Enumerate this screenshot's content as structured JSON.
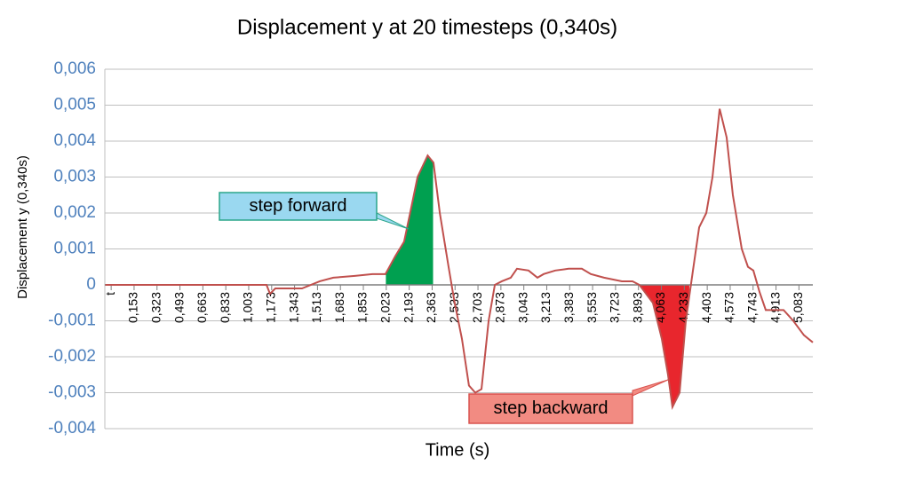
{
  "chart_data": {
    "type": "line",
    "title": "Displacement y at 20 timesteps (0,340s)",
    "x_label": "Time (s)",
    "y_label": "Displacement y  (0,340s)",
    "x": [
      -0.06,
      1.135,
      1.161,
      1.2,
      1.398,
      1.53,
      1.63,
      1.79,
      1.92,
      2.017,
      2.09,
      2.155,
      2.2,
      2.255,
      2.33,
      2.373,
      2.42,
      2.485,
      2.53,
      2.584,
      2.636,
      2.683,
      2.729,
      2.782,
      2.828,
      2.88,
      2.946,
      2.992,
      3.078,
      3.144,
      3.19,
      3.276,
      3.375,
      3.473,
      3.54,
      3.638,
      3.77,
      3.849,
      3.9,
      4.0,
      4.066,
      4.112,
      4.145,
      4.198,
      4.244,
      4.297,
      4.343,
      4.396,
      4.442,
      4.495,
      4.547,
      4.593,
      4.659,
      4.705,
      4.745,
      4.791,
      4.837,
      4.922,
      4.969,
      5.041,
      5.12,
      5.186
    ],
    "series": [
      {
        "name": "Displacement y",
        "color": "#c0504d",
        "values": [
          0,
          0,
          -0.00025,
          -0.0001,
          -0.0001,
          0.0001,
          0.0002,
          0.00025,
          0.0003,
          0.0003,
          0.0008,
          0.0012,
          0.002,
          0.003,
          0.0036,
          0.0034,
          0.002,
          0.0005,
          -0.0005,
          -0.0015,
          -0.0028,
          -0.003,
          -0.0029,
          -0.001,
          0,
          0.0001,
          0.0002,
          0.00045,
          0.0004,
          0.0002,
          0.0003,
          0.0004,
          0.00045,
          0.00045,
          0.0003,
          0.0002,
          0.0001,
          0.0001,
          0,
          -0.0005,
          -0.0015,
          -0.0025,
          -0.0034,
          -0.003,
          -0.001,
          0.0004,
          0.0016,
          0.002,
          0.003,
          0.0049,
          0.0041,
          0.0025,
          0.001,
          0.0005,
          0.0004,
          -0.0002,
          -0.0007,
          -0.0007,
          -0.0007,
          -0.001,
          -0.0014,
          -0.0016
        ]
      }
    ],
    "highlights": [
      {
        "label": "step forward",
        "from": 2.02,
        "to": 2.37,
        "color": "#00a050",
        "box_color": "#9ad8f0",
        "border_color": "#2aa58a"
      },
      {
        "label": "step backward",
        "from": 3.9,
        "to": 4.27,
        "color": "#e8262d",
        "box_color": "#f28b82",
        "border_color": "#d9534f"
      }
    ],
    "xlim": [
      -0.064,
      5.186
    ],
    "xticks": [
      {
        "value": -0.017,
        "label": "t"
      },
      {
        "value": 0.153,
        "label": "0,153"
      },
      {
        "value": 0.323,
        "label": "0,323"
      },
      {
        "value": 0.493,
        "label": "0,493"
      },
      {
        "value": 0.663,
        "label": "0,663"
      },
      {
        "value": 0.833,
        "label": "0,833"
      },
      {
        "value": 1.003,
        "label": "1,003"
      },
      {
        "value": 1.173,
        "label": "1,173"
      },
      {
        "value": 1.343,
        "label": "1,343"
      },
      {
        "value": 1.513,
        "label": "1,513"
      },
      {
        "value": 1.683,
        "label": "1,683"
      },
      {
        "value": 1.853,
        "label": "1,853"
      },
      {
        "value": 2.023,
        "label": "2,023"
      },
      {
        "value": 2.193,
        "label": "2,193"
      },
      {
        "value": 2.363,
        "label": "2,363"
      },
      {
        "value": 2.533,
        "label": "2,533"
      },
      {
        "value": 2.703,
        "label": "2,703"
      },
      {
        "value": 2.873,
        "label": "2,873"
      },
      {
        "value": 3.043,
        "label": "3,043"
      },
      {
        "value": 3.213,
        "label": "3,213"
      },
      {
        "value": 3.383,
        "label": "3,383"
      },
      {
        "value": 3.553,
        "label": "3,553"
      },
      {
        "value": 3.723,
        "label": "3,723"
      },
      {
        "value": 3.893,
        "label": "3,893"
      },
      {
        "value": 4.063,
        "label": "4,063"
      },
      {
        "value": 4.233,
        "label": "4,233"
      },
      {
        "value": 4.403,
        "label": "4,403"
      },
      {
        "value": 4.573,
        "label": "4,573"
      },
      {
        "value": 4.743,
        "label": "4,743"
      },
      {
        "value": 4.913,
        "label": "4,913"
      },
      {
        "value": 5.083,
        "label": "5,083"
      }
    ],
    "ylim": [
      -0.004,
      0.006
    ],
    "yticks": [
      {
        "value": -0.004,
        "label": "-0,004"
      },
      {
        "value": -0.003,
        "label": "-0,003"
      },
      {
        "value": -0.002,
        "label": "-0,002"
      },
      {
        "value": -0.001,
        "label": "-0,001"
      },
      0,
      {
        "value": 0.001,
        "label": "0,001"
      },
      {
        "value": 0.002,
        "label": "0,002"
      },
      {
        "value": 0.003,
        "label": "0,003"
      },
      {
        "value": 0.004,
        "label": "0,004"
      },
      {
        "value": 0.005,
        "label": "0,005"
      },
      {
        "value": 0.006,
        "label": "0,006"
      }
    ],
    "grid": true
  }
}
